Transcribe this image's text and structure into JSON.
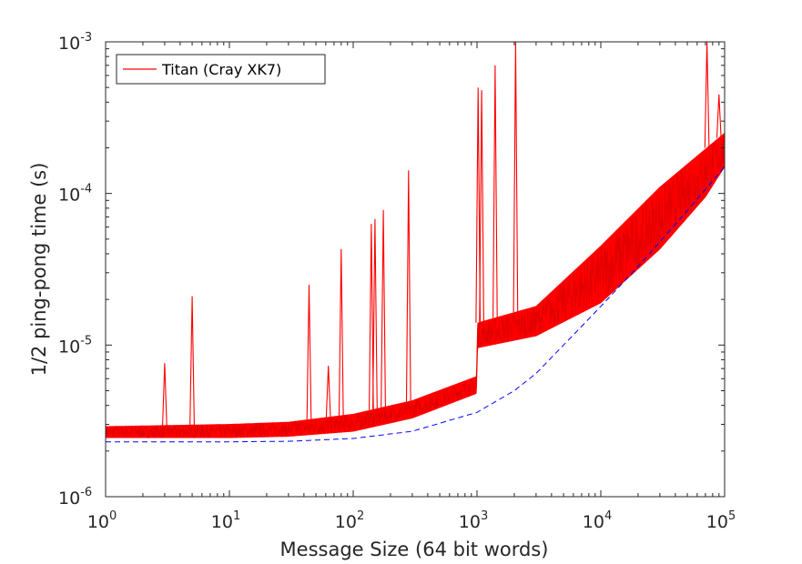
{
  "chart_data": {
    "type": "line",
    "xscale": "log",
    "yscale": "log",
    "xlabel": "Message Size (64 bit words)",
    "ylabel": "1/2 ping-pong time (s)",
    "xlim": [
      1,
      100000
    ],
    "ylim": [
      1e-06,
      0.001
    ],
    "x_ticks": [
      {
        "value": 1,
        "base": "10",
        "exp": "0"
      },
      {
        "value": 10,
        "base": "10",
        "exp": "1"
      },
      {
        "value": 100,
        "base": "10",
        "exp": "2"
      },
      {
        "value": 1000,
        "base": "10",
        "exp": "3"
      },
      {
        "value": 10000,
        "base": "10",
        "exp": "4"
      },
      {
        "value": 100000,
        "base": "10",
        "exp": "5"
      }
    ],
    "y_ticks": [
      {
        "value": 1e-06,
        "base": "10",
        "exp": "-6"
      },
      {
        "value": 1e-05,
        "base": "10",
        "exp": "-5"
      },
      {
        "value": 0.0001,
        "base": "10",
        "exp": "-4"
      },
      {
        "value": 0.001,
        "base": "10",
        "exp": "-3"
      }
    ],
    "grid": false,
    "legend_position": "top-left",
    "series": [
      {
        "name": "Titan (Cray XK7)",
        "color": "#ff0000",
        "style": "solid",
        "band_low": [
          [
            1,
            2.45e-06
          ],
          [
            10,
            2.45e-06
          ],
          [
            30,
            2.5e-06
          ],
          [
            100,
            2.7e-06
          ],
          [
            300,
            3.3e-06
          ],
          [
            990,
            4.8e-06
          ],
          [
            1010,
            9.6e-06
          ],
          [
            3000,
            1.15e-05
          ],
          [
            10000,
            1.9e-05
          ],
          [
            30000,
            4.3e-05
          ],
          [
            70000,
            9.5e-05
          ],
          [
            100000,
            0.00015
          ]
        ],
        "band_high": [
          [
            1,
            2.9e-06
          ],
          [
            10,
            3e-06
          ],
          [
            30,
            3.1e-06
          ],
          [
            100,
            3.5e-06
          ],
          [
            300,
            4.3e-06
          ],
          [
            990,
            6.2e-06
          ],
          [
            1010,
            1.4e-05
          ],
          [
            3000,
            1.8e-05
          ],
          [
            10000,
            4.5e-05
          ],
          [
            30000,
            0.00011
          ],
          [
            100000,
            0.00025
          ]
        ],
        "spikes": [
          [
            3,
            7.6e-06
          ],
          [
            5,
            2.1e-05
          ],
          [
            44,
            2.5e-05
          ],
          [
            63,
            7.3e-06
          ],
          [
            80,
            4.3e-05
          ],
          [
            140,
            6.3e-05
          ],
          [
            150,
            6.8e-05
          ],
          [
            175,
            7.8e-05
          ],
          [
            280,
            0.000142
          ],
          [
            1020,
            0.0005
          ],
          [
            1090,
            0.00048
          ],
          [
            1400,
            0.0007
          ],
          [
            2050,
            0.001
          ],
          [
            72000,
            0.001
          ],
          [
            90000,
            0.00045
          ]
        ]
      },
      {
        "name": "",
        "color": "#0000ff",
        "style": "dashed",
        "points": [
          [
            1,
            2.3e-06
          ],
          [
            10,
            2.3e-06
          ],
          [
            30,
            2.32e-06
          ],
          [
            100,
            2.42e-06
          ],
          [
            300,
            2.7e-06
          ],
          [
            1000,
            3.6e-06
          ],
          [
            2000,
            5e-06
          ],
          [
            3000,
            6.5e-06
          ],
          [
            5000,
            1e-05
          ],
          [
            10000,
            1.8e-05
          ],
          [
            20000,
            3.3e-05
          ],
          [
            50000,
            7.7e-05
          ],
          [
            100000,
            0.00015
          ]
        ]
      }
    ]
  }
}
